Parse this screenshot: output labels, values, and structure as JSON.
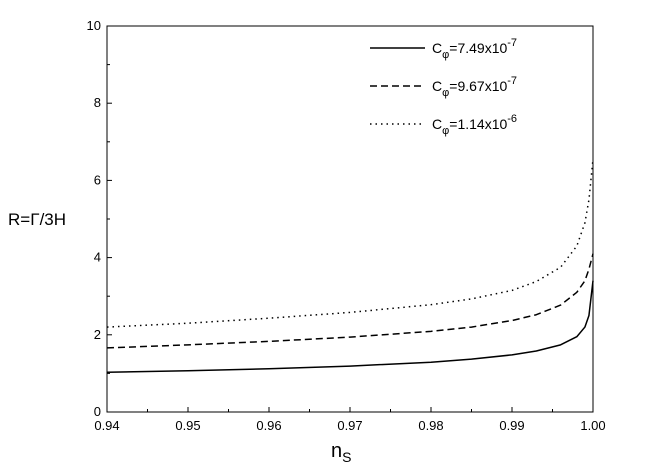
{
  "chart_data": {
    "type": "line",
    "xlabel": {
      "main": "n",
      "sub": "S"
    },
    "ylabel": "R=Γ/3H",
    "xlim": [
      0.94,
      1.0
    ],
    "ylim": [
      0,
      10
    ],
    "xticks": [
      "0.94",
      "0.95",
      "0.96",
      "0.97",
      "0.98",
      "0.99",
      "1.00"
    ],
    "xtick_values": [
      0.94,
      0.95,
      0.96,
      0.97,
      0.98,
      0.99,
      1.0
    ],
    "yticks": [
      "0",
      "2",
      "4",
      "6",
      "8",
      "10"
    ],
    "ytick_values": [
      0,
      2,
      4,
      6,
      8,
      10
    ],
    "grid": false,
    "legend_position": "top-right",
    "series": [
      {
        "legend": {
          "base": "C",
          "sub": "φ",
          "value": "=7.49x10",
          "exp": "-7"
        },
        "style": "solid",
        "x": [
          0.94,
          0.95,
          0.96,
          0.97,
          0.98,
          0.985,
          0.99,
          0.993,
          0.996,
          0.998,
          0.999,
          0.9995,
          1.0
        ],
        "y": [
          1.03,
          1.07,
          1.12,
          1.19,
          1.29,
          1.37,
          1.48,
          1.58,
          1.74,
          1.95,
          2.2,
          2.5,
          3.4
        ]
      },
      {
        "legend": {
          "base": "C",
          "sub": "φ",
          "value": "=9.67x10",
          "exp": "-7"
        },
        "style": "dashed",
        "x": [
          0.94,
          0.95,
          0.96,
          0.97,
          0.98,
          0.985,
          0.99,
          0.993,
          0.996,
          0.998,
          0.999,
          0.9995,
          1.0
        ],
        "y": [
          1.66,
          1.74,
          1.83,
          1.94,
          2.09,
          2.2,
          2.37,
          2.52,
          2.77,
          3.1,
          3.4,
          3.7,
          4.1
        ]
      },
      {
        "legend": {
          "base": "C",
          "sub": "φ",
          "value": "=1.14x10",
          "exp": "-6"
        },
        "style": "dotted",
        "x": [
          0.94,
          0.95,
          0.96,
          0.97,
          0.98,
          0.985,
          0.99,
          0.993,
          0.996,
          0.998,
          0.999,
          0.9995,
          1.0
        ],
        "y": [
          2.2,
          2.3,
          2.43,
          2.58,
          2.78,
          2.93,
          3.15,
          3.38,
          3.75,
          4.3,
          4.9,
          5.5,
          6.55
        ]
      }
    ]
  }
}
